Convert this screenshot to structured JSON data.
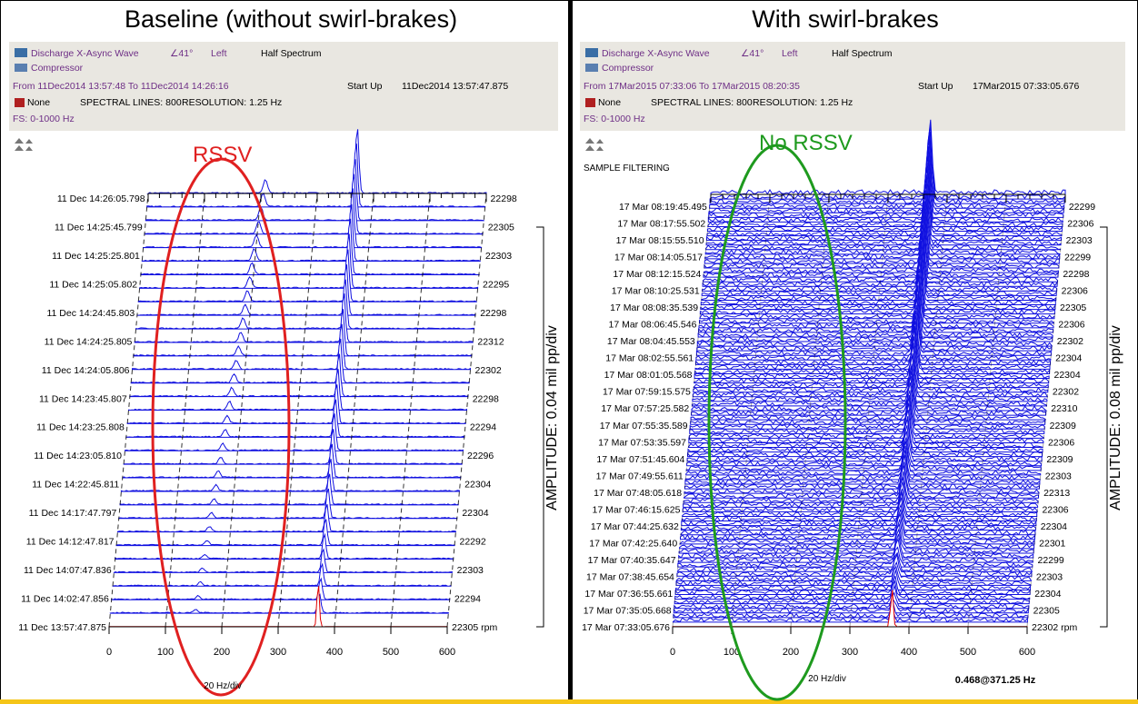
{
  "panels": [
    {
      "title": "Baseline (without swirl-brakes)",
      "header": {
        "signal": "Discharge X-Async Wave",
        "angle": "∠41°",
        "side": "Left",
        "mode": "Half Spectrum",
        "machine": "Compressor",
        "range": "From 11Dec2014 13:57:48 To 11Dec2014 14:26:16",
        "event": "Start Up",
        "start": "11Dec2014 13:57:47.875",
        "filter": "None",
        "lines": "SPECTRAL LINES: 800",
        "resolution": "RESOLUTION:  1.25 Hz",
        "fs": "FS: 0-1000 Hz"
      },
      "annotation": "RSSV",
      "times": [
        "11 Dec 14:26:05.798",
        "11 Dec 14:25:45.799",
        "11 Dec 14:25:25.801",
        "11 Dec 14:25:05.802",
        "11 Dec 14:24:45.803",
        "11 Dec 14:24:25.805",
        "11 Dec 14:24:05.806",
        "11 Dec 14:23:45.807",
        "11 Dec 14:23:25.808",
        "11 Dec 14:23:05.810",
        "11 Dec 14:22:45.811",
        "11 Dec 14:17:47.797",
        "11 Dec 14:12:47.817",
        "11 Dec 14:07:47.836",
        "11 Dec 14:02:47.856",
        "11 Dec 13:57:47.875"
      ],
      "rpms": [
        "22298",
        "22305",
        "22303",
        "22295",
        "22298",
        "22312",
        "22302",
        "22298",
        "22294",
        "22296",
        "22304",
        "22304",
        "22292",
        "22303",
        "22294",
        "22305 rpm"
      ],
      "xticks": [
        0,
        100,
        200,
        300,
        400,
        500,
        600
      ],
      "x_unit": "20 Hz/div",
      "amplitude": "AMPLITUDE: 0.04 mil pp/div"
    },
    {
      "title": "With swirl-brakes",
      "header": {
        "signal": "Discharge X-Async Wave",
        "angle": "∠41°",
        "side": "Left",
        "mode": "Half Spectrum",
        "machine": "Compressor",
        "range": "From 17Mar2015 07:33:06 To 17Mar2015 08:20:35",
        "event": "Start Up",
        "start": "17Mar2015 07:33:05.676",
        "filter": "None",
        "lines": "SPECTRAL LINES: 800",
        "resolution": "RESOLUTION:  1.25 Hz",
        "fs": "FS: 0-1000 Hz"
      },
      "filtering": "SAMPLE FILTERING",
      "annotation": "No RSSV",
      "times": [
        "17 Mar 08:19:45.495",
        "17 Mar 08:17:55.502",
        "17 Mar 08:15:55.510",
        "17 Mar 08:14:05.517",
        "17 Mar 08:12:15.524",
        "17 Mar 08:10:25.531",
        "17 Mar 08:08:35.539",
        "17 Mar 08:06:45.546",
        "17 Mar 08:04:45.553",
        "17 Mar 08:02:55.561",
        "17 Mar 08:01:05.568",
        "17 Mar 07:59:15.575",
        "17 Mar 07:57:25.582",
        "17 Mar 07:55:35.589",
        "17 Mar 07:53:35.597",
        "17 Mar 07:51:45.604",
        "17 Mar 07:49:55.611",
        "17 Mar 07:48:05.618",
        "17 Mar 07:46:15.625",
        "17 Mar 07:44:25.632",
        "17 Mar 07:42:25.640",
        "17 Mar 07:40:35.647",
        "17 Mar 07:38:45.654",
        "17 Mar 07:36:55.661",
        "17 Mar 07:35:05.668",
        "17 Mar 07:33:05.676"
      ],
      "rpms": [
        "22299",
        "22306",
        "22303",
        "22299",
        "22298",
        "22306",
        "22305",
        "22306",
        "22302",
        "22304",
        "22304",
        "22302",
        "22310",
        "22309",
        "22306",
        "22309",
        "22303",
        "22313",
        "22306",
        "22304",
        "22301",
        "22299",
        "22303",
        "22304",
        "22305",
        "22302 rpm"
      ],
      "xticks": [
        0,
        100,
        200,
        300,
        400,
        500,
        600
      ],
      "x_unit": "20 Hz/div",
      "amplitude": "AMPLITUDE: 0.08 mil pp/div",
      "marker": "0.468@371.25 Hz"
    }
  ]
}
